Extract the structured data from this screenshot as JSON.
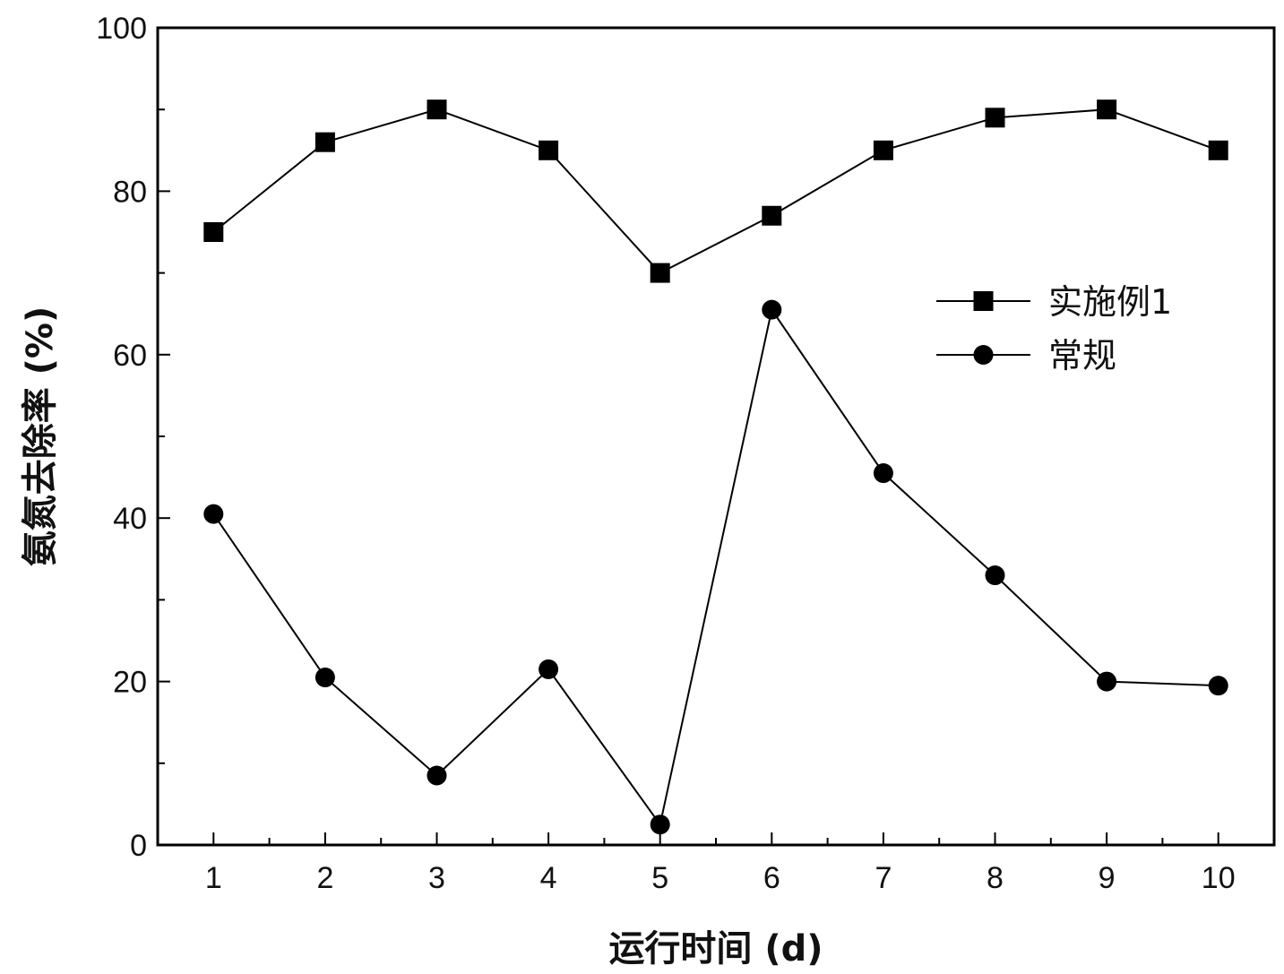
{
  "chart_data": {
    "type": "line",
    "title": "",
    "xlabel": "运行时间 (d)",
    "ylabel": "氨氮去除率 (%)",
    "x": [
      1,
      2,
      3,
      4,
      5,
      6,
      7,
      8,
      9,
      10
    ],
    "x_tick_labels": [
      "1",
      "2",
      "3",
      "4",
      "5",
      "6",
      "7",
      "8",
      "9",
      "10"
    ],
    "xlim": [
      0.5,
      10.5
    ],
    "ylim": [
      0,
      100
    ],
    "y_tick_labels": [
      "0",
      "20",
      "40",
      "60",
      "80",
      "100"
    ],
    "grid": false,
    "legend_position": "right-center",
    "series": [
      {
        "name": "实施例1",
        "marker": "square",
        "color": "#000000",
        "values": [
          75,
          86,
          90,
          85,
          70,
          77,
          85,
          89,
          90,
          85
        ]
      },
      {
        "name": "常规",
        "marker": "circle",
        "color": "#000000",
        "values": [
          40.5,
          20.5,
          8.5,
          21.5,
          2.5,
          65.5,
          45.5,
          33,
          20,
          19.5
        ]
      }
    ]
  }
}
